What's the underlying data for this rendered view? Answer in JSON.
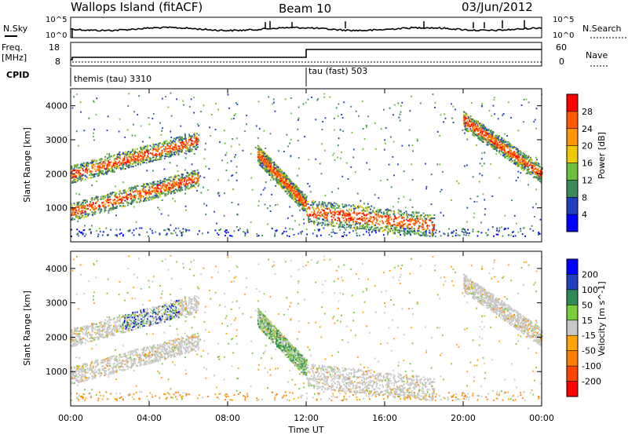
{
  "header": {
    "station": "Wallops Island (fitACF)",
    "beam": "Beam 10",
    "date": "03/Jun/2012"
  },
  "noise_panel": {
    "left_label": "N.Sky",
    "right_label": "N.Search",
    "left_ticks": [
      "10^5",
      "10^0"
    ],
    "right_ticks": [
      "10^5",
      "10^0"
    ]
  },
  "freq_panel": {
    "left_label_1": "Freq.",
    "left_label_2": "[MHz]",
    "right_label": "Nave",
    "left_ticks": [
      "18",
      "8"
    ],
    "right_ticks": [
      "60",
      "0"
    ],
    "cpid_label": "CPID",
    "cpid_modes": [
      "themis (tau) 3310",
      "tau (fast) 503"
    ]
  },
  "chart_data": [
    {
      "type": "heatmap",
      "title": "",
      "xlabel": "Time UT",
      "ylabel": "Slant Range [km]",
      "colorbar_label": "Power [dB]",
      "colorbar_ticks": [
        "28",
        "24",
        "20",
        "16",
        "12",
        "8",
        "4"
      ],
      "colorbar_colors": [
        "#ff0000",
        "#ff5a00",
        "#ff9600",
        "#f0c800",
        "#6fbf3f",
        "#3c8a5a",
        "#1f3fbf",
        "#0000ff"
      ],
      "xlim": [
        "00:00",
        "24:00"
      ],
      "ylim": [
        0,
        4500
      ],
      "yticks": [
        "1000",
        "2000",
        "3000",
        "4000"
      ],
      "features": [
        {
          "name": "band-lower-left",
          "start_hour": 0,
          "end_hour": 6.5,
          "range_start": 900,
          "range_end": 1900
        },
        {
          "name": "band-upper-left",
          "start_hour": 0,
          "end_hour": 6.5,
          "range_start": 2000,
          "range_end": 3000
        },
        {
          "name": "descending-echo",
          "start_hour": 9.5,
          "end_hour": 12,
          "range_start": 2600,
          "range_end": 1100
        },
        {
          "name": "band-midday",
          "start_hour": 12,
          "end_hour": 18.5,
          "range_start": 900,
          "range_end": 500
        },
        {
          "name": "band-evening",
          "start_hour": 20,
          "end_hour": 24,
          "range_start": 3600,
          "range_end": 2000
        }
      ]
    },
    {
      "type": "heatmap",
      "title": "",
      "xlabel": "Time UT",
      "ylabel": "Slant Range [km]",
      "colorbar_label": "Velocity [m s^-1]",
      "colorbar_ticks": [
        "200",
        "100",
        "50",
        "15",
        "-15",
        "-50",
        "-100",
        "-200"
      ],
      "colorbar_colors": [
        "#0000ff",
        "#2040c0",
        "#2e8b57",
        "#7ccd3c",
        "#c8c8c8",
        "#ffa500",
        "#ff7f00",
        "#ff4500",
        "#ff0000"
      ],
      "xlim": [
        "00:00",
        "24:00"
      ],
      "ylim": [
        0,
        4500
      ],
      "yticks": [
        "1000",
        "2000",
        "3000",
        "4000"
      ],
      "xticks": [
        "00:00",
        "04:00",
        "08:00",
        "12:00",
        "16:00",
        "20:00",
        "00:00"
      ]
    }
  ]
}
